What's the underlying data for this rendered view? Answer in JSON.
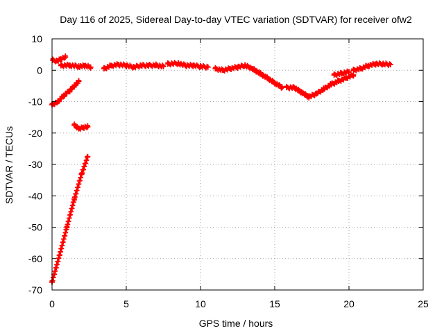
{
  "chart_data": {
    "type": "scatter",
    "title": "Day 116 of 2025, Sidereal Day-to-day VTEC variation (SDTVAR) for receiver ofw2",
    "xlabel": "GPS time / hours",
    "ylabel": "SDTVAR / TECUs",
    "xlim": [
      0,
      25
    ],
    "ylim": [
      -70,
      10
    ],
    "xticks": [
      0,
      5,
      10,
      15,
      20,
      25
    ],
    "yticks": [
      -70,
      -60,
      -50,
      -40,
      -30,
      -20,
      -10,
      0,
      10
    ],
    "grid": true,
    "marker": "plus",
    "series": [
      {
        "name": "SDTVAR",
        "color": "#ff0000",
        "segments": [
          [
            [
              0.0,
              -67.5
            ],
            [
              0.5,
              -59
            ],
            [
              1.0,
              -50
            ],
            [
              1.5,
              -41
            ],
            [
              2.0,
              -33
            ],
            [
              2.4,
              -27.5
            ]
          ],
          [
            [
              0.0,
              -11
            ],
            [
              0.4,
              -10
            ],
            [
              0.8,
              -8
            ],
            [
              1.2,
              -6.5
            ],
            [
              1.5,
              -5
            ],
            [
              1.8,
              -3.5
            ]
          ],
          [
            [
              0.05,
              3.2
            ],
            [
              0.3,
              3.0
            ],
            [
              0.6,
              3.6
            ],
            [
              0.9,
              4.2
            ]
          ],
          [
            [
              1.5,
              -17.5
            ],
            [
              1.8,
              -18.5
            ],
            [
              2.1,
              -18.2
            ],
            [
              2.4,
              -18.0
            ]
          ],
          [
            [
              0.6,
              1.5
            ],
            [
              1.2,
              1.6
            ],
            [
              1.8,
              1.2
            ],
            [
              2.2,
              1.4
            ],
            [
              2.6,
              1.0
            ]
          ],
          [
            [
              3.5,
              0.5
            ],
            [
              4.0,
              1.5
            ],
            [
              4.5,
              1.8
            ],
            [
              5.0,
              1.5
            ],
            [
              5.5,
              1.0
            ],
            [
              6.0,
              1.5
            ],
            [
              6.5,
              1.5
            ],
            [
              7.0,
              1.6
            ],
            [
              7.5,
              1.2
            ]
          ],
          [
            [
              7.8,
              2.0
            ],
            [
              8.5,
              2.2
            ],
            [
              9.0,
              1.5
            ],
            [
              9.5,
              1.5
            ],
            [
              10.0,
              1.2
            ],
            [
              10.5,
              1.0
            ]
          ],
          [
            [
              11.0,
              0.5
            ],
            [
              11.5,
              0.0
            ],
            [
              12.0,
              0.5
            ],
            [
              12.5,
              1.0
            ],
            [
              13.0,
              1.5
            ],
            [
              13.5,
              0.5
            ],
            [
              14.0,
              -1.0
            ],
            [
              14.5,
              -2.5
            ],
            [
              15.0,
              -4.0
            ],
            [
              15.5,
              -5.5
            ]
          ],
          [
            [
              15.8,
              -5.5
            ],
            [
              16.3,
              -5.5
            ],
            [
              16.8,
              -7.0
            ],
            [
              17.3,
              -8.5
            ],
            [
              17.8,
              -7.5
            ],
            [
              18.3,
              -6.0
            ],
            [
              18.8,
              -4.5
            ],
            [
              19.3,
              -3.5
            ],
            [
              19.8,
              -2.5
            ],
            [
              20.3,
              -1.5
            ]
          ],
          [
            [
              19.0,
              -1.5
            ],
            [
              19.5,
              -1.0
            ],
            [
              20.0,
              -0.5
            ]
          ],
          [
            [
              20.3,
              0.0
            ],
            [
              20.8,
              0.5
            ],
            [
              21.3,
              1.5
            ],
            [
              21.8,
              2.0
            ],
            [
              22.3,
              2.0
            ],
            [
              22.8,
              1.8
            ]
          ]
        ]
      }
    ]
  }
}
